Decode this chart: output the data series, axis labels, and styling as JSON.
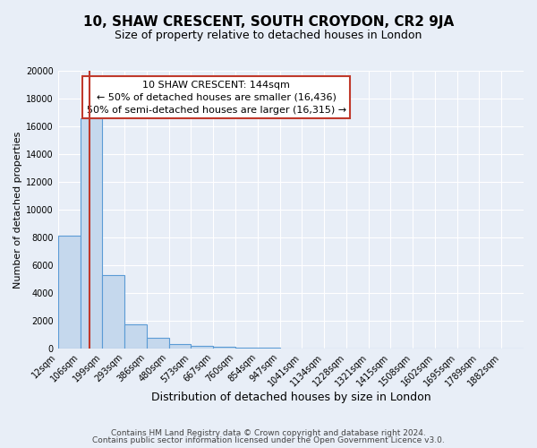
{
  "title": "10, SHAW CRESCENT, SOUTH CROYDON, CR2 9JA",
  "subtitle": "Size of property relative to detached houses in London",
  "xlabel": "Distribution of detached houses by size in London",
  "ylabel": "Number of detached properties",
  "bar_values": [
    8100,
    16600,
    5300,
    1750,
    750,
    300,
    150,
    100,
    75,
    50,
    0,
    0,
    0,
    0,
    0,
    0,
    0,
    0,
    0,
    0,
    0
  ],
  "xtick_labels": [
    "12sqm",
    "106sqm",
    "199sqm",
    "293sqm",
    "386sqm",
    "480sqm",
    "573sqm",
    "667sqm",
    "760sqm",
    "854sqm",
    "947sqm",
    "1041sqm",
    "1134sqm",
    "1228sqm",
    "1321sqm",
    "1415sqm",
    "1508sqm",
    "1602sqm",
    "1695sqm",
    "1789sqm",
    "1882sqm"
  ],
  "bar_color": "#c5d8ed",
  "bar_edge_color": "#5b9bd5",
  "ylim": [
    0,
    20000
  ],
  "yticks": [
    0,
    2000,
    4000,
    6000,
    8000,
    10000,
    12000,
    14000,
    16000,
    18000,
    20000
  ],
  "vline_color": "#c0392b",
  "annotation_title": "10 SHAW CRESCENT: 144sqm",
  "annotation_line1": "← 50% of detached houses are smaller (16,436)",
  "annotation_line2": "50% of semi-detached houses are larger (16,315) →",
  "annotation_box_color": "#ffffff",
  "annotation_box_edge": "#c0392b",
  "background_color": "#e8eef7",
  "plot_bg_color": "#e8eef7",
  "footer1": "Contains HM Land Registry data © Crown copyright and database right 2024.",
  "footer2": "Contains public sector information licensed under the Open Government Licence v3.0.",
  "title_fontsize": 11,
  "subtitle_fontsize": 9,
  "xlabel_fontsize": 9,
  "ylabel_fontsize": 8,
  "tick_fontsize": 7,
  "annotation_fontsize": 8,
  "footer_fontsize": 6.5
}
